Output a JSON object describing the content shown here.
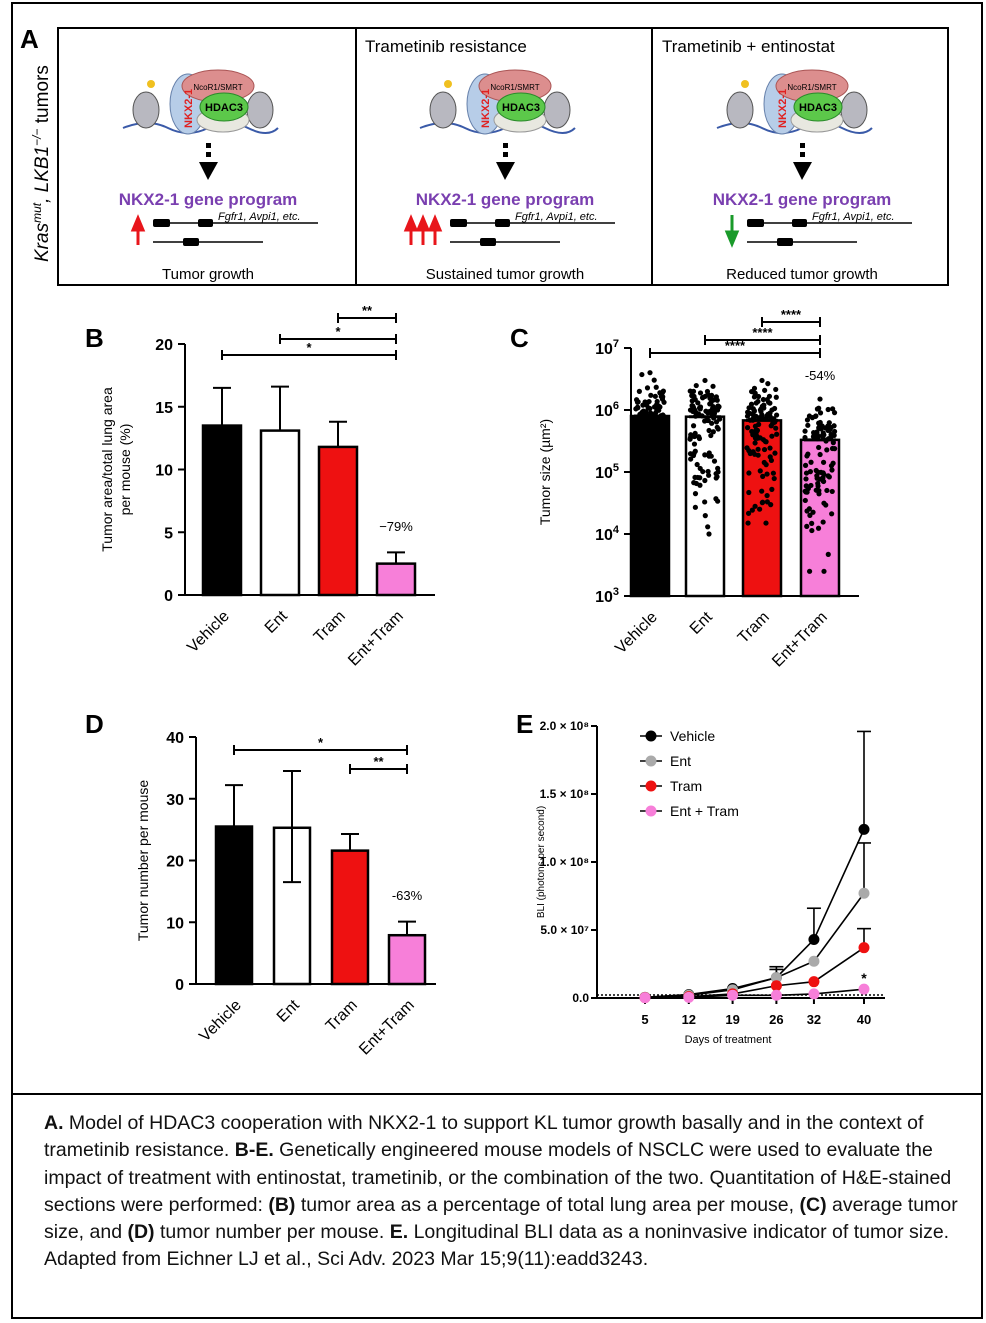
{
  "panel_a": {
    "label": "A",
    "side_label": "Kras^mut, LKB1^-/- tumors",
    "side_label_main": "Kras",
    "side_label_sup1": "mut",
    "side_label_mid": ", LKB1",
    "side_label_sup2": "−/−",
    "side_label_end": " tumors",
    "complex": {
      "corepressor": "NcoR1/SMRT",
      "hdac": "HDAC3",
      "tf": "NKX2-1"
    },
    "program": "NKX2-1  gene program",
    "genes": "Fgfr1, Avpi1, etc.",
    "cells": [
      {
        "title": "",
        "outcome": "Tumor growth",
        "arrows": 1,
        "direction": "up",
        "arrow_color": "#e8151b"
      },
      {
        "title": "Trametinib resistance",
        "outcome": "Sustained tumor growth",
        "arrows": 3,
        "direction": "up",
        "arrow_color": "#e8151b"
      },
      {
        "title": "Trametinib + entinostat",
        "outcome": "Reduced tumor growth",
        "arrows": 1,
        "direction": "down",
        "arrow_color": "#1a9a2a"
      }
    ]
  },
  "colors": {
    "vehicle": "#000000",
    "ent": "#ffffff",
    "tram": "#ee1111",
    "ent_tram": "#f77fd9",
    "ent_line": "#aaaaaa",
    "purple": "#7a3fb0"
  },
  "chart_data": [
    {
      "panel": "B",
      "type": "bar",
      "categories": [
        "Vehicle",
        "Ent",
        "Tram",
        "Ent+Tram"
      ],
      "values": [
        13.5,
        13.1,
        11.8,
        2.5
      ],
      "error_upper": [
        16.5,
        16.6,
        13.8,
        3.4
      ],
      "ylabel": "Tumor area/total lung area per mouse (%)",
      "ylabel_line1": "Tumor area/total lung area",
      "ylabel_line2": "per mouse (%)",
      "ylim": [
        0,
        20
      ],
      "yticks": [
        "0",
        "5",
        "10",
        "15",
        "20"
      ],
      "annotation": "−79%",
      "significance": [
        {
          "from": "Vehicle",
          "to": "Ent+Tram",
          "label": "*"
        },
        {
          "from": "Ent",
          "to": "Ent+Tram",
          "label": "*"
        },
        {
          "from": "Tram",
          "to": "Ent+Tram",
          "label": "**"
        }
      ]
    },
    {
      "panel": "C",
      "type": "bar",
      "scale": "log",
      "categories": [
        "Vehicle",
        "Ent",
        "Tram",
        "Ent+Tram"
      ],
      "values": [
        800000,
        780000,
        680000,
        330000
      ],
      "point_range": [
        [
          30000,
          4000000
        ],
        [
          10000,
          3000000
        ],
        [
          15000,
          3000000
        ],
        [
          2500,
          1500000
        ]
      ],
      "ylabel": "Tumor size (µm²)",
      "ylim": [
        1000,
        10000000
      ],
      "yticks": [
        "10^3",
        "10^4",
        "10^5",
        "10^6",
        "10^7"
      ],
      "annotation": "-54%",
      "significance": [
        {
          "from": "Vehicle",
          "to": "Ent+Tram",
          "label": "****"
        },
        {
          "from": "Ent",
          "to": "Ent+Tram",
          "label": "****"
        },
        {
          "from": "Tram",
          "to": "Ent+Tram",
          "label": "****"
        }
      ]
    },
    {
      "panel": "D",
      "type": "bar",
      "categories": [
        "Vehicle",
        "Ent",
        "Tram",
        "Ent+Tram"
      ],
      "values": [
        25.5,
        25.3,
        21.6,
        7.9
      ],
      "error_upper": [
        32.2,
        34.5,
        24.3,
        10.1
      ],
      "error_lower": [
        null,
        16.5,
        null,
        null
      ],
      "ylabel": "Tumor number per mouse",
      "ylim": [
        0,
        40
      ],
      "yticks": [
        "0",
        "10",
        "20",
        "30",
        "40"
      ],
      "annotation": "-63%",
      "significance": [
        {
          "from": "Vehicle",
          "to": "Ent+Tram",
          "label": "*"
        },
        {
          "from": "Tram",
          "to": "Ent+Tram",
          "label": "**"
        }
      ]
    },
    {
      "panel": "E",
      "type": "line",
      "x": [
        5,
        12,
        19,
        26,
        32,
        40
      ],
      "xlabel": "Days of treatment",
      "ylabel": "BLI (photons per second)",
      "ylim": [
        0,
        200000000
      ],
      "yticks": [
        "0.0",
        "5.0 × 10⁷",
        "1.0 × 10⁸",
        "1.5 × 10⁸",
        "2.0 × 10⁸"
      ],
      "xticks": [
        "5",
        "12",
        "19",
        "26",
        "32",
        "40"
      ],
      "legend": "top-left",
      "annotation": "*",
      "series": [
        {
          "name": "Vehicle",
          "values": [
            500000,
            2500000,
            7000000,
            15000000,
            43000000,
            124000000
          ],
          "error_upper": [
            null,
            null,
            null,
            23000000,
            66000000,
            196000000
          ]
        },
        {
          "name": "Ent",
          "values": [
            500000,
            2000000,
            6000000,
            15000000,
            27000000,
            77000000
          ],
          "error_upper": [
            null,
            null,
            null,
            21000000,
            null,
            114000000
          ]
        },
        {
          "name": "Tram",
          "values": [
            300000,
            1000000,
            3000000,
            9000000,
            12000000,
            37000000
          ],
          "error_upper": [
            null,
            null,
            null,
            null,
            null,
            51000000
          ]
        },
        {
          "name": "Ent + Tram",
          "values": [
            200000,
            500000,
            2000000,
            2000000,
            3000000,
            6500000
          ]
        }
      ]
    }
  ],
  "caption": {
    "a_label": "A.",
    "a_text": " Model of HDAC3 cooperation with NKX2-1 to support KL tumor growth basally and in the context of trametinib resistance. ",
    "be_label": "B-E.",
    "be_text": " Genetically engineered mouse models of NSCLC were used to evaluate the impact of treatment with entinostat, trametinib, or the combination of the two. Quantitation of H&E-stained sections were performed: ",
    "b_label": "(B)",
    "b_text": " tumor area as a percentage of total lung area per mouse, ",
    "c_label": "(C)",
    "c_text": " average tumor size, and ",
    "d_label": "(D)",
    "d_text": " tumor number per mouse. ",
    "e_label": "E.",
    "e_text": " Longitudinal BLI data as a noninvasive indicator of tumor size. Adapted from Eichner LJ et al., Sci Adv. 2023 Mar 15;9(11):eadd3243."
  }
}
